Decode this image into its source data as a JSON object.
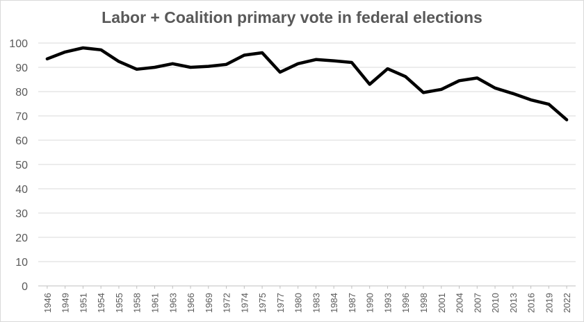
{
  "chart_data": {
    "type": "line",
    "title": "Labor + Coalition primary vote in federal elections",
    "xlabel": "",
    "ylabel": "",
    "ylim": [
      0,
      100
    ],
    "yticks": [
      0,
      10,
      20,
      30,
      40,
      50,
      60,
      70,
      80,
      90,
      100
    ],
    "grid": true,
    "legend": "none",
    "categories": [
      "1946",
      "1949",
      "1951",
      "1954",
      "1955",
      "1958",
      "1961",
      "1963",
      "1966",
      "1969",
      "1972",
      "1974",
      "1975",
      "1977",
      "1980",
      "1983",
      "1984",
      "1987",
      "1990",
      "1993",
      "1996",
      "1998",
      "2001",
      "2004",
      "2007",
      "2010",
      "2013",
      "2016",
      "2019",
      "2022"
    ],
    "series": [
      {
        "color": "#000000",
        "values": [
          93.5,
          96.3,
          98.0,
          97.2,
          92.4,
          89.2,
          90.0,
          91.5,
          90.0,
          90.4,
          91.2,
          95.0,
          96.0,
          88.0,
          91.5,
          93.2,
          92.7,
          92.0,
          83.0,
          89.4,
          86.2,
          79.6,
          80.9,
          84.5,
          85.6,
          81.5,
          79.2,
          76.6,
          74.8,
          68.4
        ]
      }
    ]
  }
}
